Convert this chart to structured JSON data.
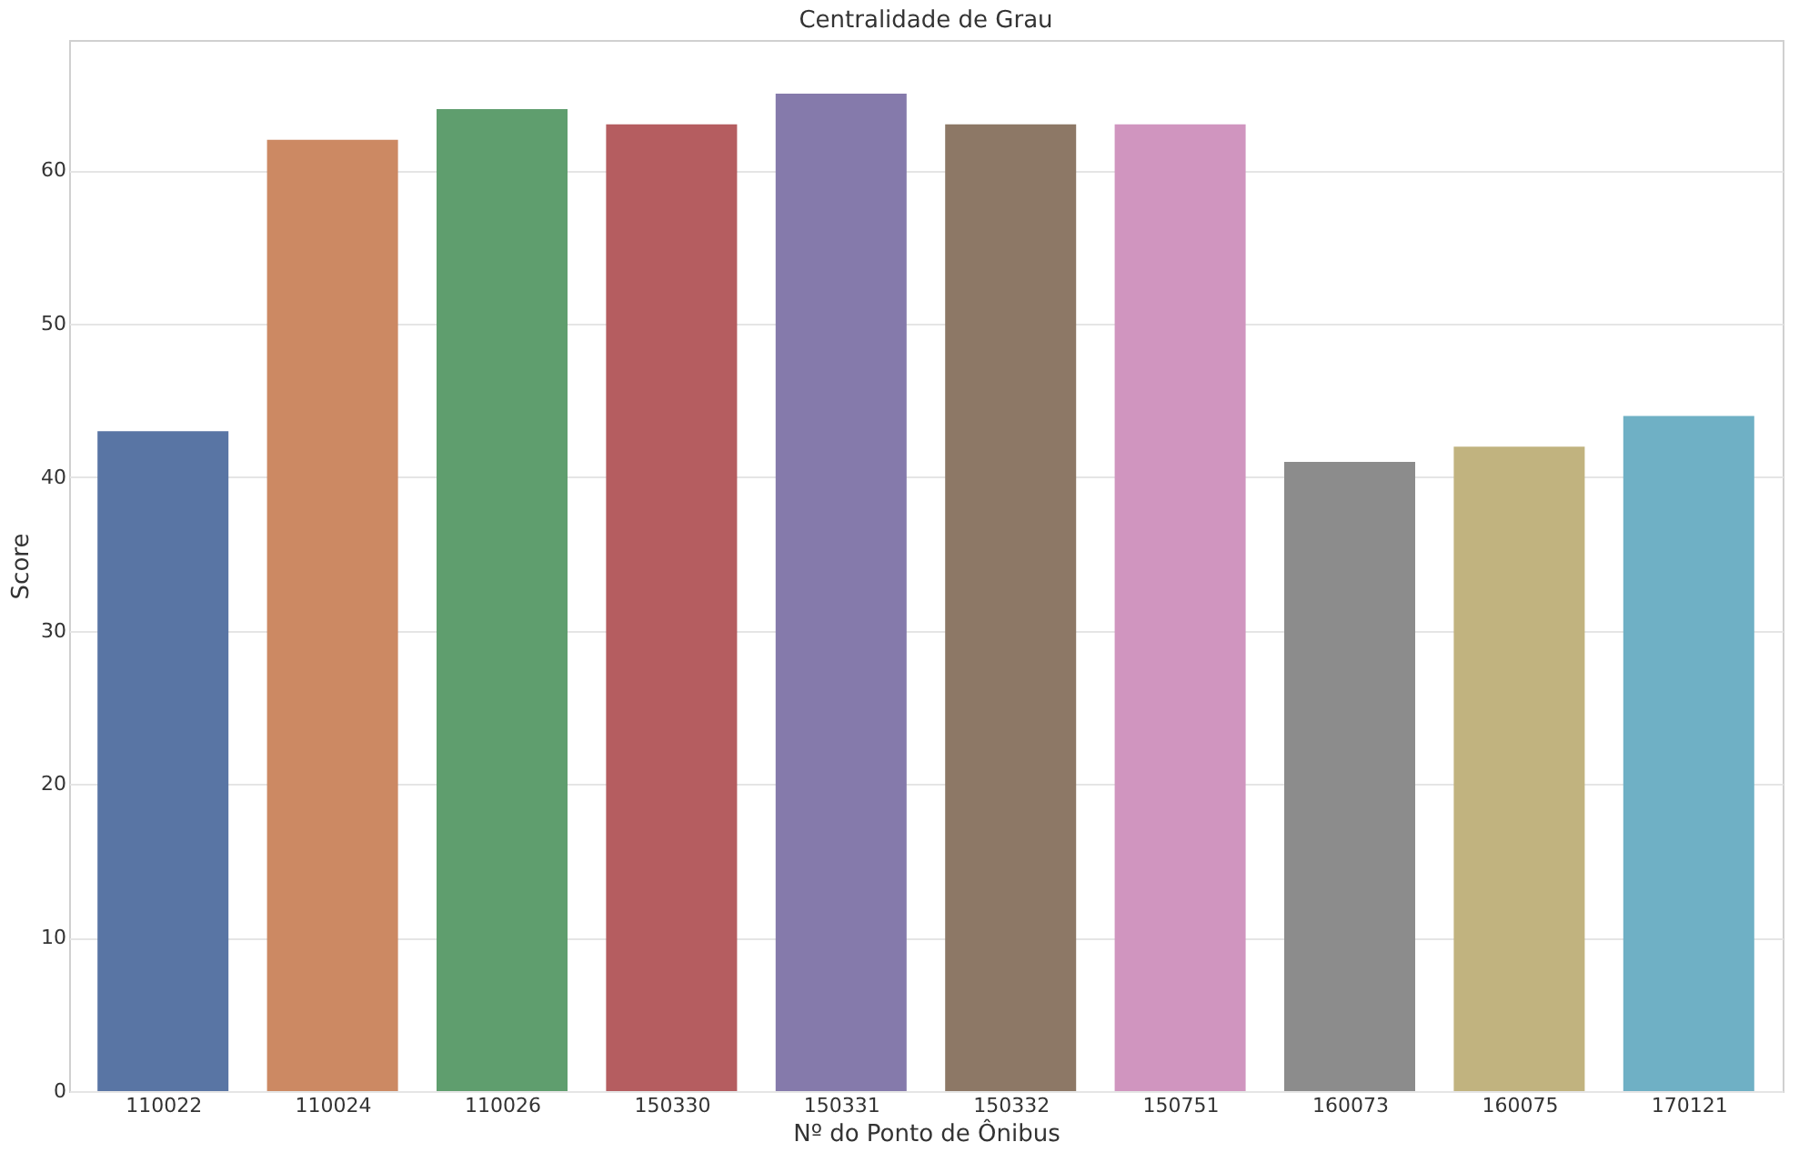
{
  "chart_data": {
    "type": "bar",
    "title": "Centralidade de Grau",
    "xlabel": "Nº do Ponto de Ônibus",
    "ylabel": "Score",
    "categories": [
      "110022",
      "110024",
      "110026",
      "150330",
      "150331",
      "150332",
      "150751",
      "160073",
      "160075",
      "170121"
    ],
    "values": [
      43,
      62,
      64,
      63,
      65,
      63,
      63,
      41,
      42,
      44
    ],
    "colors": [
      "#5975a4",
      "#cc8963",
      "#5f9e6e",
      "#b55d60",
      "#857aab",
      "#8d7866",
      "#d095bf",
      "#8c8c8c",
      "#c1b37f",
      "#6fb0c5"
    ],
    "ylim": [
      0,
      68.5
    ],
    "yticks": [
      0,
      10,
      20,
      30,
      40,
      50,
      60
    ],
    "grid": "y"
  }
}
